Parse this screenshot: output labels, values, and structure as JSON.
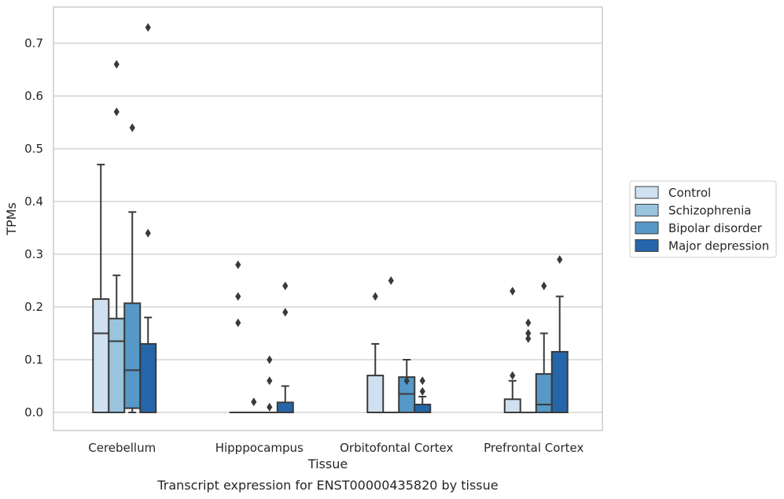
{
  "chart_data": {
    "type": "boxplot",
    "caption": "Transcript expression for ENST00000435820 by tissue",
    "xlabel": "Tissue",
    "ylabel": "TPMs",
    "ylim": [
      -0.035,
      0.77
    ],
    "yticks": [
      0.0,
      0.1,
      0.2,
      0.3,
      0.4,
      0.5,
      0.6,
      0.7
    ],
    "ytick_labels": [
      "0.0",
      "0.1",
      "0.2",
      "0.3",
      "0.4",
      "0.5",
      "0.6",
      "0.7"
    ],
    "grid": "horizontal",
    "legend_position": "right",
    "categories": [
      "Cerebellum",
      "Hipppocampus",
      "Orbitofontal Cortex",
      "Prefrontal Cortex"
    ],
    "series": [
      {
        "name": "Control",
        "color": "#cfe0f0",
        "boxes": [
          {
            "whislo": 0.0,
            "q1": 0.0,
            "med": 0.15,
            "q3": 0.215,
            "whishi": 0.47,
            "fliers": []
          },
          {
            "whislo": 0.0,
            "q1": 0.0,
            "med": 0.0,
            "q3": 0.0,
            "whishi": 0.0,
            "fliers": [
              0.17,
              0.22,
              0.28
            ]
          },
          {
            "whislo": 0.0,
            "q1": 0.0,
            "med": 0.0,
            "q3": 0.07,
            "whishi": 0.13,
            "fliers": [
              0.22
            ]
          },
          {
            "whislo": 0.0,
            "q1": 0.0,
            "med": 0.0,
            "q3": 0.025,
            "whishi": 0.06,
            "fliers": [
              0.07,
              0.23
            ]
          }
        ]
      },
      {
        "name": "Schizophrenia",
        "color": "#9ac3dd",
        "boxes": [
          {
            "whislo": 0.0,
            "q1": 0.0,
            "med": 0.135,
            "q3": 0.178,
            "whishi": 0.26,
            "fliers": [
              0.57,
              0.66
            ]
          },
          {
            "whislo": 0.0,
            "q1": 0.0,
            "med": 0.0,
            "q3": 0.0,
            "whishi": 0.0,
            "fliers": [
              0.02
            ]
          },
          {
            "whislo": 0.0,
            "q1": 0.0,
            "med": 0.0,
            "q3": 0.0,
            "whishi": 0.0,
            "fliers": [
              0.25
            ]
          },
          {
            "whislo": 0.0,
            "q1": 0.0,
            "med": 0.0,
            "q3": 0.0,
            "whishi": 0.0,
            "fliers": [
              0.14,
              0.15,
              0.17
            ]
          }
        ]
      },
      {
        "name": "Bipolar disorder",
        "color": "#5698c7",
        "boxes": [
          {
            "whislo": 0.0,
            "q1": 0.008,
            "med": 0.08,
            "q3": 0.207,
            "whishi": 0.38,
            "fliers": [
              0.54
            ]
          },
          {
            "whislo": 0.0,
            "q1": 0.0,
            "med": 0.0,
            "q3": 0.0,
            "whishi": 0.0,
            "fliers": [
              0.01,
              0.06,
              0.1
            ]
          },
          {
            "whislo": 0.0,
            "q1": 0.0,
            "med": 0.035,
            "q3": 0.067,
            "whishi": 0.1,
            "fliers": [
              0.06
            ]
          },
          {
            "whislo": 0.0,
            "q1": 0.0,
            "med": 0.015,
            "q3": 0.073,
            "whishi": 0.15,
            "fliers": [
              0.24
            ]
          }
        ]
      },
      {
        "name": "Major depression",
        "color": "#2466a9",
        "boxes": [
          {
            "whislo": 0.0,
            "q1": 0.0,
            "med": 0.0,
            "q3": 0.13,
            "whishi": 0.18,
            "fliers": [
              0.34,
              0.73
            ]
          },
          {
            "whislo": 0.0,
            "q1": 0.0,
            "med": 0.0,
            "q3": 0.019,
            "whishi": 0.05,
            "fliers": [
              0.19,
              0.24
            ]
          },
          {
            "whislo": 0.0,
            "q1": 0.0,
            "med": 0.0,
            "q3": 0.015,
            "whishi": 0.03,
            "fliers": [
              0.04,
              0.06
            ]
          },
          {
            "whislo": 0.0,
            "q1": 0.0,
            "med": 0.0,
            "q3": 0.115,
            "whishi": 0.22,
            "fliers": [
              0.29
            ]
          }
        ]
      }
    ]
  }
}
